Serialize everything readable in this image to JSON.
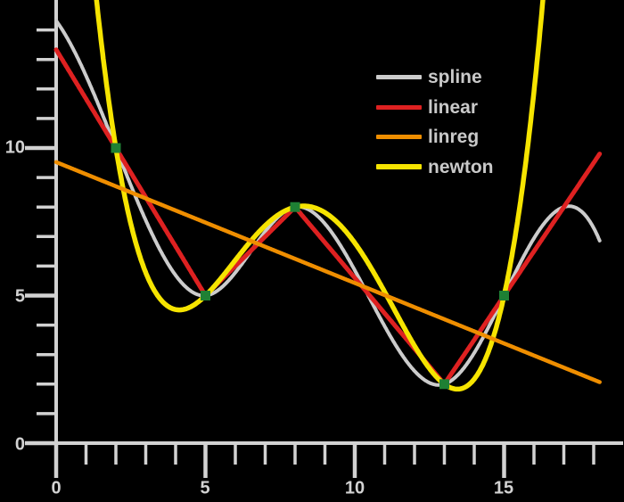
{
  "figure": {
    "background_color": "#000000",
    "axis_color": "#d2d2d2"
  },
  "legend": {
    "position": "upper-right",
    "items": [
      {
        "label": "spline",
        "color": "#cccccc"
      },
      {
        "label": "linear",
        "color": "#de2121"
      },
      {
        "label": "linreg",
        "color": "#ef8e00"
      },
      {
        "label": "newton",
        "color": "#f6e400"
      }
    ]
  },
  "chart_data": {
    "type": "line",
    "title": "",
    "xlabel": "",
    "ylabel": "",
    "points": {
      "x": [
        2,
        5,
        8,
        13,
        15
      ],
      "y": [
        10,
        5,
        8,
        2,
        5
      ],
      "marker": {
        "shape": "square",
        "color": "#1e8034",
        "size": 11
      }
    },
    "series": [
      {
        "name": "spline",
        "method": "natural-cubic-spline",
        "color": "#cccccc",
        "width": 4
      },
      {
        "name": "linear",
        "method": "piecewise-linear",
        "color": "#de2121",
        "width": 5
      },
      {
        "name": "newton",
        "method": "newton-polynomial",
        "color": "#f6e400",
        "width": 5.5
      },
      {
        "name": "linreg",
        "method": "linear-regression",
        "color": "#ef8e00",
        "width": 4.5
      }
    ],
    "x_draw_range": [
      0,
      18.2
    ],
    "axes": {
      "xlim": [
        0,
        19
      ],
      "ylim": [
        0,
        15.05
      ],
      "grid": false,
      "x_major_ticks": [
        0,
        5,
        10,
        15
      ],
      "x_minor_ticks": [
        1,
        2,
        3,
        4,
        6,
        7,
        8,
        9,
        11,
        12,
        13,
        14,
        16,
        17,
        18
      ],
      "y_major_ticks": [
        0,
        5,
        10
      ],
      "y_minor_ticks": [
        1,
        2,
        3,
        4,
        6,
        7,
        8,
        9,
        11,
        12,
        13,
        14
      ],
      "x_tick_labels": [
        "0",
        "5",
        "10",
        "15"
      ],
      "y_tick_labels": [
        "0",
        "5",
        "10"
      ]
    }
  }
}
